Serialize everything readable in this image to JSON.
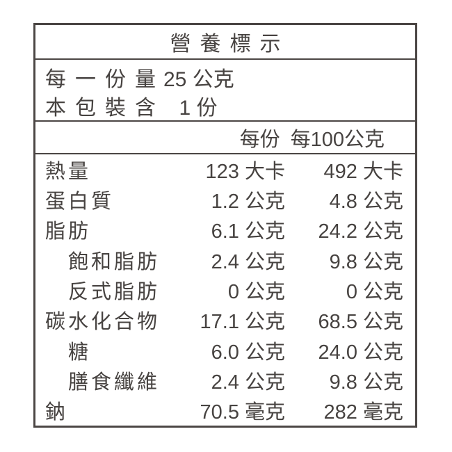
{
  "title": "營養標示",
  "serving_info": [
    {
      "label": "每一份量",
      "value": "25 公克"
    },
    {
      "label": "本包裝含",
      "value": "1 份"
    }
  ],
  "columns": {
    "per_serving": "每份",
    "per_100g": "每100公克"
  },
  "nutrients": [
    {
      "label": "熱量",
      "indent": false,
      "per_serving": "123 大卡",
      "per_100g": "492 大卡"
    },
    {
      "label": "蛋白質",
      "indent": false,
      "per_serving": "1.2 公克",
      "per_100g": "4.8 公克"
    },
    {
      "label": "脂肪",
      "indent": false,
      "per_serving": "6.1 公克",
      "per_100g": "24.2 公克"
    },
    {
      "label": "飽和脂肪",
      "indent": true,
      "per_serving": "2.4 公克",
      "per_100g": "9.8 公克"
    },
    {
      "label": "反式脂肪",
      "indent": true,
      "per_serving": "0 公克",
      "per_100g": "0 公克"
    },
    {
      "label": "碳水化合物",
      "indent": false,
      "per_serving": "17.1 公克",
      "per_100g": "68.5 公克"
    },
    {
      "label": "糖",
      "indent": true,
      "per_serving": "6.0 公克",
      "per_100g": "24.0 公克"
    },
    {
      "label": "膳食纖維",
      "indent": true,
      "per_serving": "2.4 公克",
      "per_100g": "9.8 公克"
    },
    {
      "label": "鈉",
      "indent": false,
      "per_serving": "70.5 毫克",
      "per_100g": "282 毫克"
    }
  ],
  "colors": {
    "text": "#474341",
    "border": "#4b4644",
    "background": "#ffffff"
  }
}
